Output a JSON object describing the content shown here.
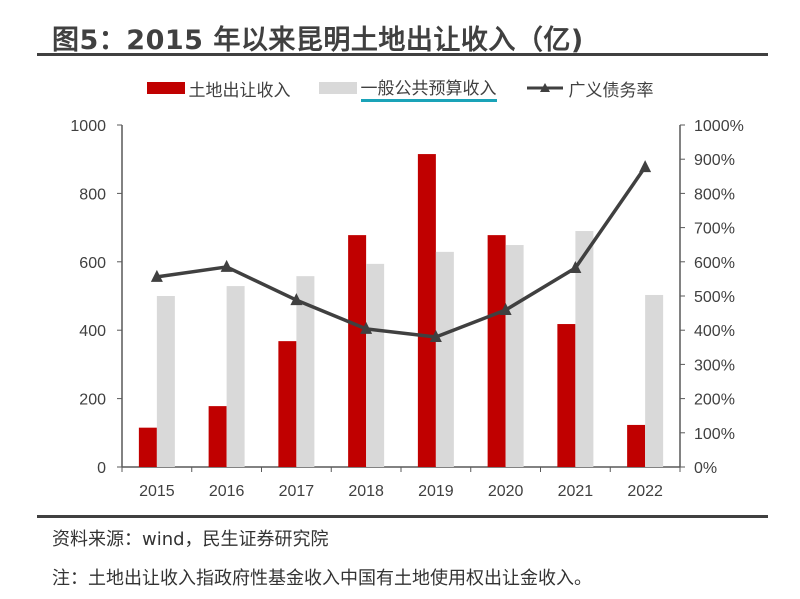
{
  "title": "图5：2015 年以来昆明土地出让收入（亿)",
  "source": "资料来源：wind，民生证券研究院",
  "footnote": "注：土地出让收入指政府性基金收入中国有土地使用权出让金收入。",
  "colors": {
    "land": "#C00000",
    "budget": "#D9D9D9",
    "rate": "#404040"
  },
  "chart_data": {
    "type": "bar+line",
    "categories": [
      "2015",
      "2016",
      "2017",
      "2018",
      "2019",
      "2020",
      "2021",
      "2022"
    ],
    "series": [
      {
        "name": "土地出让收入",
        "type": "bar",
        "axis": "left",
        "values": [
          115,
          178,
          368,
          678,
          915,
          678,
          418,
          123
        ]
      },
      {
        "name": "一般公共预算收入",
        "type": "bar",
        "axis": "left",
        "values": [
          500,
          529,
          558,
          594,
          629,
          649,
          690,
          503
        ]
      },
      {
        "name": "广义债务率",
        "type": "line",
        "axis": "right",
        "marker": "triangle",
        "values": [
          556,
          585,
          488,
          404,
          380,
          459,
          582,
          877
        ]
      }
    ],
    "ylim": [
      0,
      1000
    ],
    "yticks": [
      "0",
      "200",
      "400",
      "600",
      "800",
      "1000"
    ],
    "y2lim": [
      0,
      1000
    ],
    "y2ticks": [
      "0%",
      "100%",
      "200%",
      "300%",
      "400%",
      "500%",
      "600%",
      "700%",
      "800%",
      "900%",
      "1000%"
    ],
    "grid": false,
    "legend": "top"
  }
}
